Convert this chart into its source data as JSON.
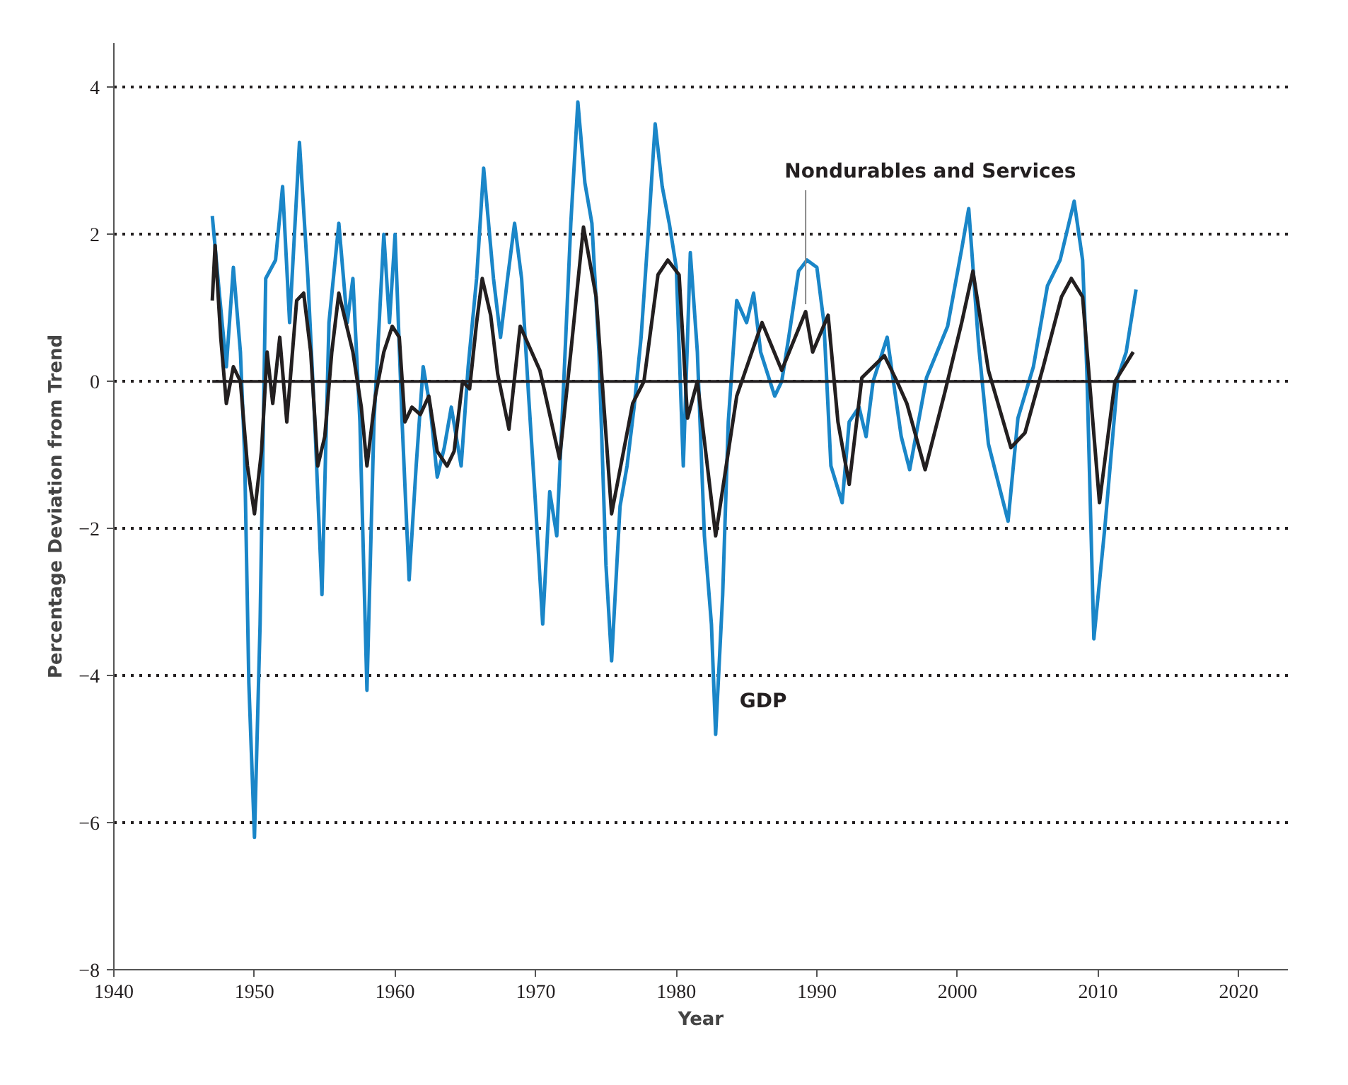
{
  "chart_data": {
    "type": "line",
    "xlabel": "Year",
    "ylabel": "Percentage Deviation from Trend",
    "xlim": [
      1940,
      2023.5
    ],
    "ylim": [
      -8,
      4.6
    ],
    "xticks": [
      1940,
      1950,
      1960,
      1970,
      1980,
      1990,
      2000,
      2010,
      2020
    ],
    "yticks": [
      -8,
      -6,
      -4,
      -2,
      0,
      2,
      4
    ],
    "grid": "y",
    "legend": false,
    "marker": "none",
    "line_style": "solid",
    "series": [
      {
        "name": "GDP",
        "color": "#1a86c8",
        "x": [
          1947.0,
          1947.5,
          1948.0,
          1948.5,
          1949.0,
          1949.3,
          1949.6,
          1950.0,
          1950.4,
          1950.8,
          1951.5,
          1952.0,
          1952.5,
          1953.2,
          1953.8,
          1954.3,
          1954.8,
          1955.3,
          1956.0,
          1956.6,
          1957.0,
          1957.5,
          1958.0,
          1958.5,
          1959.2,
          1959.6,
          1960.0,
          1960.5,
          1961.0,
          1961.5,
          1962.0,
          1962.5,
          1963.0,
          1963.5,
          1964.0,
          1964.7,
          1965.2,
          1965.8,
          1966.3,
          1967.0,
          1967.5,
          1968.0,
          1968.5,
          1969.0,
          1969.5,
          1970.0,
          1970.5,
          1971.0,
          1971.5,
          1972.0,
          1972.5,
          1973.0,
          1973.5,
          1974.0,
          1974.5,
          1975.0,
          1975.4,
          1976.0,
          1976.5,
          1977.0,
          1977.5,
          1978.0,
          1978.5,
          1979.0,
          1979.5,
          1980.0,
          1980.5,
          1981.0,
          1981.5,
          1982.0,
          1982.5,
          1982.8,
          1983.3,
          1983.7,
          1984.3,
          1985.0,
          1985.5,
          1986.0,
          1987.0,
          1987.5,
          1988.0,
          1988.7,
          1989.3,
          1990.0,
          1990.5,
          1991.0,
          1991.8,
          1992.3,
          1993.0,
          1993.5,
          1994.0,
          1995.0,
          1996.0,
          1996.6,
          1997.8,
          1999.3,
          2000.3,
          2000.8,
          2001.5,
          2002.2,
          2003.6,
          2004.3,
          2005.4,
          2006.4,
          2007.3,
          2008.3,
          2008.9,
          2009.2,
          2009.7,
          2010.5,
          2011.4,
          2012.0,
          2012.7
        ],
        "values": [
          2.25,
          1.2,
          0.2,
          1.55,
          0.4,
          -1.0,
          -4.1,
          -6.2,
          -3.3,
          1.4,
          1.65,
          2.65,
          0.8,
          3.25,
          1.4,
          -0.6,
          -2.9,
          0.8,
          2.15,
          0.8,
          1.4,
          -0.55,
          -4.2,
          -0.55,
          2.0,
          0.8,
          2.0,
          -0.55,
          -2.7,
          -1.15,
          0.2,
          -0.35,
          -1.3,
          -0.9,
          -0.35,
          -1.15,
          0.2,
          1.4,
          2.9,
          1.4,
          0.6,
          1.4,
          2.15,
          1.4,
          -0.2,
          -1.7,
          -3.3,
          -1.5,
          -2.1,
          0.0,
          2.15,
          3.8,
          2.7,
          2.15,
          0.4,
          -2.5,
          -3.8,
          -1.7,
          -1.15,
          -0.35,
          0.6,
          2.0,
          3.5,
          2.65,
          2.15,
          1.55,
          -1.15,
          1.75,
          0.4,
          -2.1,
          -3.3,
          -4.8,
          -2.9,
          -0.55,
          1.1,
          0.8,
          1.2,
          0.4,
          -0.2,
          0.0,
          0.6,
          1.5,
          1.65,
          1.55,
          0.8,
          -1.15,
          -1.65,
          -0.55,
          -0.35,
          -0.75,
          0.0,
          0.6,
          -0.75,
          -1.2,
          0.05,
          0.75,
          1.8,
          2.35,
          0.5,
          -0.85,
          -1.9,
          -0.5,
          0.2,
          1.3,
          1.65,
          2.45,
          1.65,
          0.15,
          -3.5,
          -1.95,
          0.05,
          0.4,
          1.25
        ]
      },
      {
        "name": "Nondurables and Services",
        "color": "#231f20",
        "x": [
          1947.0,
          1947.2,
          1947.6,
          1948.0,
          1948.5,
          1949.0,
          1949.5,
          1950.0,
          1950.5,
          1950.9,
          1951.3,
          1951.8,
          1952.3,
          1953.0,
          1953.5,
          1954.0,
          1954.5,
          1955.0,
          1955.5,
          1956.0,
          1956.5,
          1957.0,
          1957.6,
          1958.0,
          1958.6,
          1959.2,
          1959.8,
          1960.3,
          1960.7,
          1961.2,
          1961.8,
          1962.4,
          1963.0,
          1963.7,
          1964.2,
          1964.8,
          1965.3,
          1965.8,
          1966.2,
          1966.8,
          1967.3,
          1968.1,
          1968.9,
          1970.3,
          1971.7,
          1972.5,
          1973.4,
          1974.3,
          1975.4,
          1976.1,
          1976.9,
          1977.7,
          1978.7,
          1979.4,
          1980.2,
          1980.8,
          1981.5,
          1982.8,
          1984.3,
          1986.1,
          1987.5,
          1989.2,
          1989.7,
          1990.8,
          1991.5,
          1992.3,
          1993.2,
          1994.8,
          1995.7,
          1996.4,
          1997.7,
          1999.1,
          2000.3,
          2001.1,
          2002.2,
          2003.8,
          2004.8,
          2006.1,
          2007.4,
          2008.1,
          2008.9,
          2010.1,
          2011.2,
          2012.5
        ],
        "values": [
          1.1,
          1.85,
          0.6,
          -0.3,
          0.2,
          0.0,
          -1.15,
          -1.8,
          -0.95,
          0.4,
          -0.3,
          0.6,
          -0.55,
          1.1,
          1.2,
          0.4,
          -1.15,
          -0.75,
          0.4,
          1.2,
          0.8,
          0.4,
          -0.35,
          -1.15,
          -0.2,
          0.4,
          0.75,
          0.6,
          -0.55,
          -0.35,
          -0.45,
          -0.2,
          -0.95,
          -1.15,
          -0.95,
          0.0,
          -0.1,
          0.8,
          1.4,
          0.9,
          0.1,
          -0.65,
          0.75,
          0.15,
          -1.05,
          0.4,
          2.1,
          1.15,
          -1.8,
          -1.1,
          -0.3,
          0.0,
          1.45,
          1.65,
          1.45,
          -0.5,
          0.0,
          -2.1,
          -0.2,
          0.8,
          0.15,
          0.95,
          0.4,
          0.9,
          -0.55,
          -1.4,
          0.05,
          0.35,
          0.0,
          -0.3,
          -1.2,
          -0.15,
          0.8,
          1.5,
          0.15,
          -0.9,
          -0.7,
          0.2,
          1.15,
          1.4,
          1.15,
          -1.65,
          0.0,
          0.4
        ]
      },
      {
        "color": "#231f20",
        "x": [
          1947.0,
          2012.7
        ],
        "values": [
          0,
          0
        ]
      }
    ]
  }
}
